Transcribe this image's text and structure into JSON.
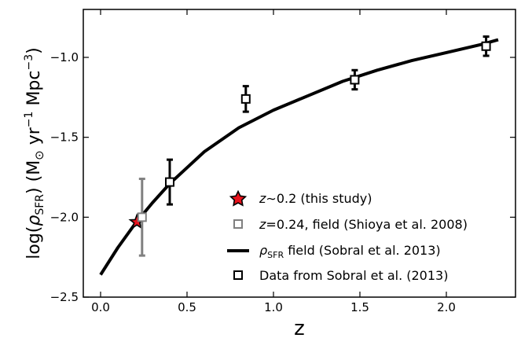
{
  "chart_data": {
    "type": "scatter",
    "xlabel": "z",
    "ylabel": "log(ρSFR) (M☉ yr⁻¹ Mpc⁻³)",
    "ylabel_parts": {
      "prefix": "log(",
      "rho": "ρ",
      "rho_sub": "SFR",
      "mid": ") (M",
      "sun": "⊙",
      "yr": " yr",
      "yr_exp": "−1",
      "mpc": " Mpc",
      "mpc_exp": "−3",
      "suffix": ")"
    },
    "xlim": [
      -0.1,
      2.4
    ],
    "ylim": [
      -2.5,
      -0.7
    ],
    "xticks": [
      0.0,
      0.5,
      1.0,
      1.5,
      2.0
    ],
    "xtick_labels": [
      "0.0",
      "0.5",
      "1.0",
      "1.5",
      "2.0"
    ],
    "yticks": [
      -2.5,
      -2.0,
      -1.5,
      -1.0
    ],
    "ytick_labels": [
      "−2.5",
      "−2.0",
      "−1.5",
      "−1.0"
    ],
    "grid": false,
    "legend_position": "lower-right",
    "series": [
      {
        "name": "z∼0.2 (this study)",
        "legend_parts": {
          "z": "z",
          "rest": "∼0.2 (this study)"
        },
        "marker": "star",
        "color": "#e8121c",
        "edge_color": "#000000",
        "points": [
          {
            "x": 0.21,
            "y": -2.03
          }
        ]
      },
      {
        "name": "z=0.24, field (Shioya et al. 2008)",
        "legend_parts": {
          "z": "z",
          "rest": "=0.24, field (Shioya et al. 2008)"
        },
        "marker": "square-open",
        "color": "#808080",
        "points": [
          {
            "x": 0.24,
            "y": -2.0,
            "yerr_low": 0.24,
            "yerr_high": 0.24
          }
        ]
      },
      {
        "name": "ρSFR field (Sobral et al. 2013)",
        "legend_parts": {
          "rho": "ρ",
          "sub": "SFR",
          "rest": " field (Sobral et al. 2013)"
        },
        "marker": "line",
        "color": "#000000",
        "curve": [
          {
            "x": 0.0,
            "y": -2.36
          },
          {
            "x": 0.1,
            "y": -2.19
          },
          {
            "x": 0.2,
            "y": -2.04
          },
          {
            "x": 0.3,
            "y": -1.91
          },
          {
            "x": 0.4,
            "y": -1.79
          },
          {
            "x": 0.5,
            "y": -1.69
          },
          {
            "x": 0.6,
            "y": -1.59
          },
          {
            "x": 0.8,
            "y": -1.44
          },
          {
            "x": 1.0,
            "y": -1.33
          },
          {
            "x": 1.2,
            "y": -1.24
          },
          {
            "x": 1.4,
            "y": -1.15
          },
          {
            "x": 1.6,
            "y": -1.08
          },
          {
            "x": 1.8,
            "y": -1.02
          },
          {
            "x": 2.0,
            "y": -0.97
          },
          {
            "x": 2.2,
            "y": -0.92
          },
          {
            "x": 2.3,
            "y": -0.89
          }
        ]
      },
      {
        "name": "Data from Sobral et al. (2013)",
        "marker": "square-open",
        "color": "#000000",
        "points": [
          {
            "x": 0.4,
            "y": -1.78,
            "yerr_low": 0.14,
            "yerr_high": 0.14
          },
          {
            "x": 0.84,
            "y": -1.26,
            "yerr_low": 0.08,
            "yerr_high": 0.08
          },
          {
            "x": 1.47,
            "y": -1.14,
            "yerr_low": 0.06,
            "yerr_high": 0.06
          },
          {
            "x": 2.23,
            "y": -0.93,
            "yerr_low": 0.06,
            "yerr_high": 0.06
          }
        ]
      }
    ]
  }
}
